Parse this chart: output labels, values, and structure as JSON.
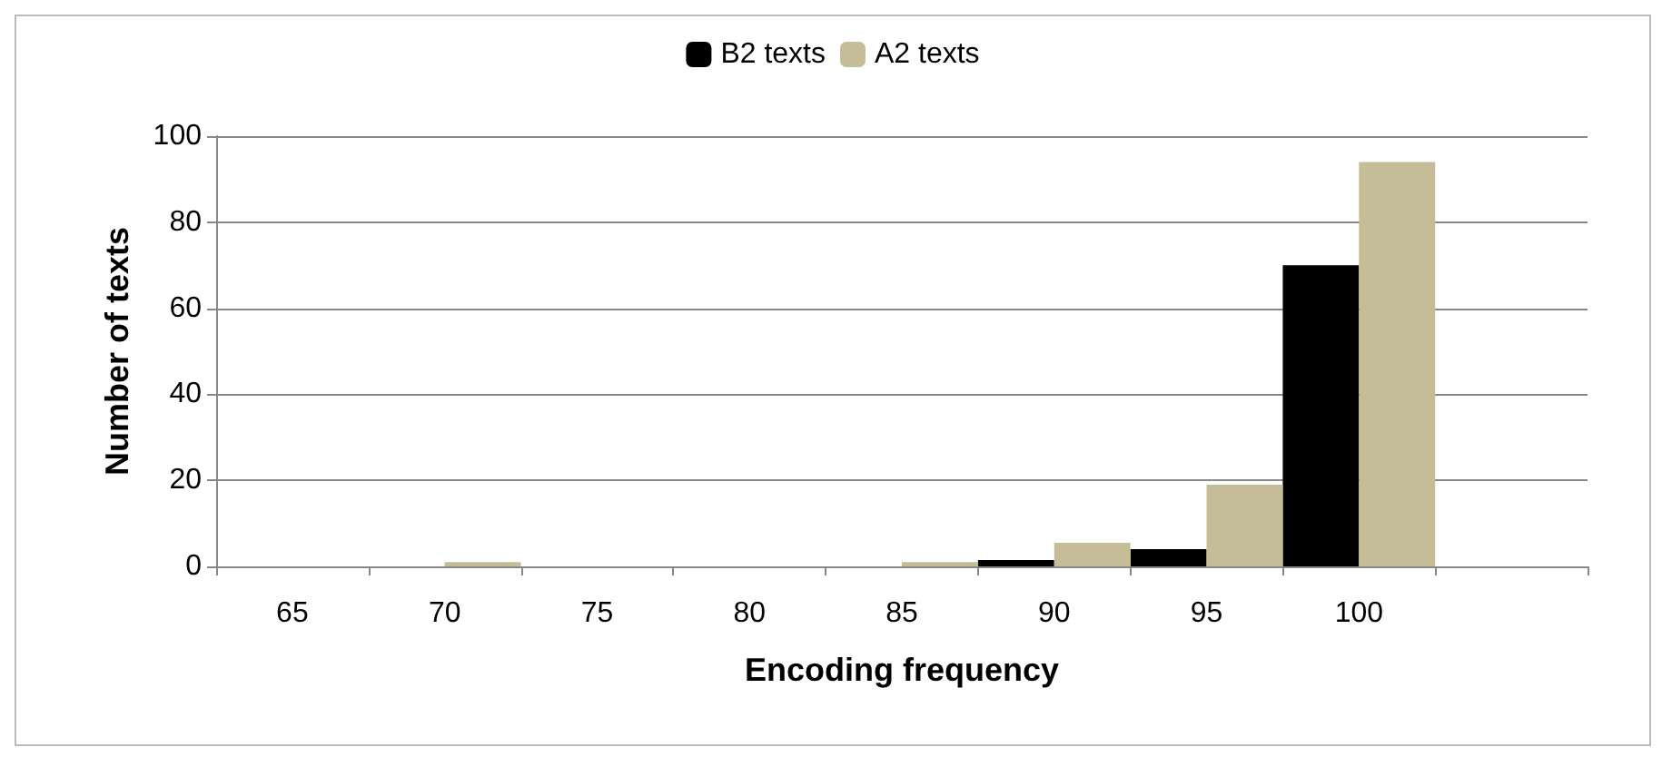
{
  "chart_data": {
    "type": "bar",
    "xlabel": "Encoding frequency",
    "ylabel": "Number of texts",
    "categories": [
      "65",
      "70",
      "75",
      "80",
      "85",
      "90",
      "95",
      "100",
      null
    ],
    "series": [
      {
        "name": "B2 texts",
        "color": "#000000",
        "values": [
          0,
          0,
          0,
          0,
          0,
          1.5,
          4,
          70,
          0
        ]
      },
      {
        "name": "A2 texts",
        "color": "#c4bd97",
        "values": [
          0,
          1,
          0,
          0,
          1,
          5.5,
          19,
          94,
          0
        ]
      }
    ],
    "ylim": [
      0,
      100
    ],
    "yticks": [
      0,
      20,
      40,
      60,
      80,
      100
    ],
    "grid": "y",
    "legend": "top"
  }
}
